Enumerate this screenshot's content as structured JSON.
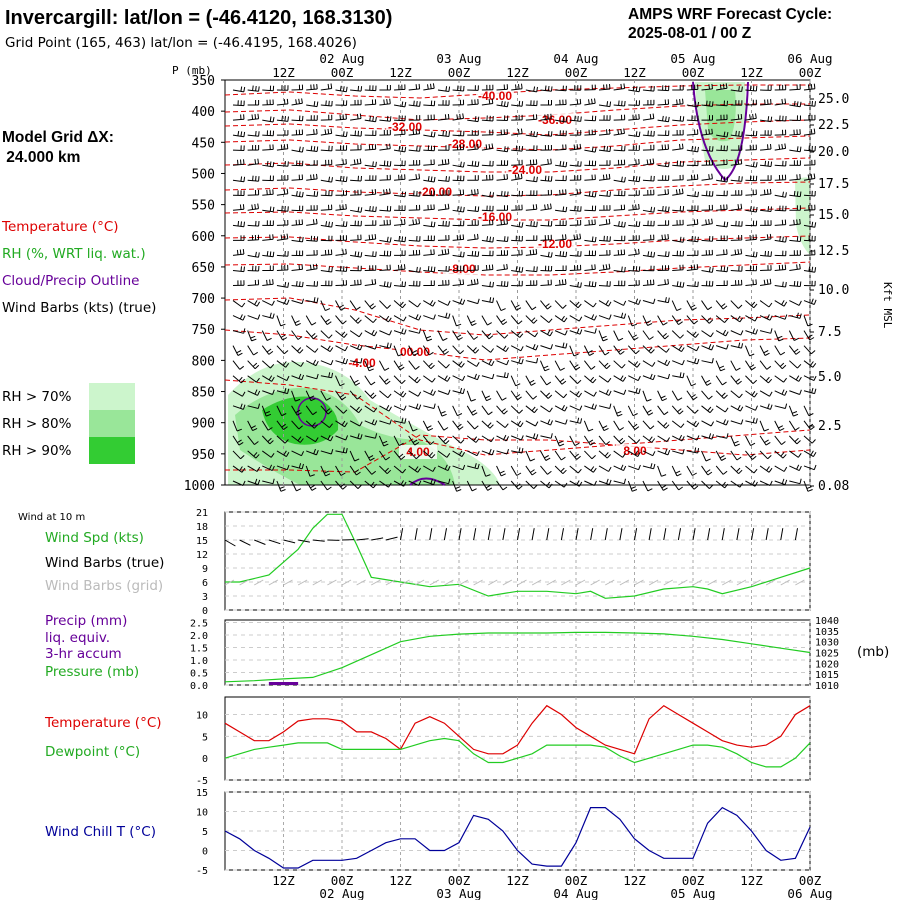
{
  "header": {
    "title": "Invercargill:  lat/lon = (-46.4120, 168.3130)",
    "subtitle": "Grid Point (165, 463) lat/lon = (-46.4195, 168.4026)",
    "cycle_line1": "AMPS WRF Forecast Cycle:",
    "cycle_line2": "2025-08-01 / 00  Z"
  },
  "left_labels": {
    "grid_line1": "Model Grid ΔX:",
    "grid_line2": " 24.000 km",
    "temperature": "Temperature (°C)",
    "rh": "RH (%, WRT liq. wat.)",
    "cloud": "Cloud/Precip Outline",
    "wind": "Wind Barbs (kts) (true)",
    "rh70": "RH > 70%",
    "rh80": "RH > 80%",
    "rh90": "RH > 90%",
    "wind10m": "Wind at 10 m",
    "wspd": "Wind Spd (kts)",
    "wbarb_true": "Wind Barbs (true)",
    "wbarb_grid": "Wind Barbs (grid)",
    "precip1": "Precip (mm)",
    "precip2": "liq. equiv.",
    "precip3": "3-hr accum",
    "pressure": "Pressure (mb)",
    "pres_unit": "(mb)",
    "temp2": "Temperature (°C)",
    "dewpoint": "Dewpoint (°C)",
    "windchill": "Wind Chill T (°C)",
    "p_axis": "P (mb)",
    "kft_axis": "Kft MSL"
  },
  "colors": {
    "temperature": "#dd0000",
    "rh": "#22cc22",
    "rh70": "#ccf5cc",
    "rh80": "#99e699",
    "rh90": "#33cc33",
    "cloud": "#660099",
    "windchill": "#000099",
    "grid_barbs": "#bbbbbb"
  },
  "time_axis": {
    "top_hours": [
      "12Z",
      "00Z",
      "12Z",
      "00Z",
      "12Z",
      "00Z",
      "12Z",
      "00Z",
      "12Z",
      "00Z"
    ],
    "top_dates": [
      "02 Aug",
      "03 Aug",
      "04 Aug",
      "05 Aug",
      "06 Aug"
    ],
    "bottom_hours": [
      "12Z",
      "00Z",
      "12Z",
      "00Z",
      "12Z",
      "00Z",
      "12Z",
      "00Z",
      "12Z",
      "00Z"
    ],
    "bottom_dates": [
      "02 Aug",
      "03 Aug",
      "04 Aug",
      "05 Aug",
      "06 Aug"
    ]
  },
  "chart_data": [
    {
      "type": "heatmap",
      "pressure_ticks": [
        "350",
        "400",
        "450",
        "500",
        "550",
        "600",
        "650",
        "700",
        "750",
        "800",
        "850",
        "900",
        "950",
        "1000"
      ],
      "height_ticks": [
        "25.0",
        "22.5",
        "20.0",
        "17.5",
        "15.0",
        "12.5",
        "10.0",
        "7.5",
        "5.0",
        "2.5",
        "0.08"
      ],
      "temperature_labels": [
        "-40.00",
        "-36.00",
        "-32.00",
        "-28.00",
        "-24.00",
        "-20.00",
        "-16.00",
        "-12.00",
        "-8.00",
        "-4.00",
        "00.00",
        "4.00",
        "8.00"
      ]
    },
    {
      "type": "line",
      "y_ticks": [
        "0",
        "3",
        "6",
        "9",
        "12",
        "15",
        "18",
        "21"
      ],
      "x_hours": [
        0,
        6,
        12,
        18,
        24,
        30,
        36,
        42,
        48,
        54,
        60,
        66,
        72,
        78,
        84,
        90,
        96,
        102,
        108,
        114,
        120
      ],
      "wind_speed_kts": [
        6,
        6.5,
        10,
        14,
        19,
        21,
        15,
        7,
        5.5,
        4,
        5,
        3,
        4,
        4,
        3,
        4,
        2,
        3,
        5,
        5,
        4
      ],
      "wind_speed_x": [
        0,
        3,
        9,
        15,
        18,
        21,
        24,
        27,
        30,
        36,
        42,
        48,
        54,
        60,
        66,
        72,
        75,
        78,
        84,
        90,
        96,
        99,
        102,
        108,
        114,
        120
      ],
      "wind_speed_y": [
        6,
        6,
        7.5,
        13,
        17.5,
        20.5,
        20.5,
        14,
        7,
        6,
        5,
        5.5,
        3,
        4,
        4,
        3.5,
        4,
        2.5,
        3,
        4.5,
        5,
        4.5,
        3.5,
        5,
        7,
        9
      ]
    },
    {
      "type": "line",
      "precip_ticks": [
        "0.0",
        "0.5",
        "1.0",
        "1.5",
        "2.0",
        "2.5"
      ],
      "pressure_ticks": [
        "1010",
        "1015",
        "1020",
        "1025",
        "1030",
        "1035",
        "1040"
      ],
      "pressure_x": [
        0,
        6,
        12,
        18,
        24,
        30,
        36,
        42,
        48,
        54,
        60,
        66,
        72,
        78,
        84,
        90,
        96,
        102,
        108,
        114,
        120
      ],
      "pressure_mb": [
        1011.5,
        1012,
        1012.8,
        1013.5,
        1018,
        1024,
        1030,
        1032.5,
        1033.5,
        1034,
        1034,
        1034,
        1034.3,
        1034.3,
        1034,
        1033.6,
        1032.5,
        1031,
        1029,
        1027,
        1025
      ],
      "precip_mm": [
        0,
        0,
        0,
        0.05,
        0.05,
        0,
        0,
        0,
        0,
        0,
        0,
        0,
        0,
        0,
        0,
        0,
        0,
        0,
        0,
        0,
        0
      ]
    },
    {
      "type": "line",
      "y_ticks": [
        "-5",
        "0",
        "5",
        "10"
      ],
      "x_hours": [
        0,
        3,
        6,
        9,
        12,
        15,
        18,
        21,
        24,
        27,
        30,
        33,
        36,
        39,
        42,
        45,
        48,
        51,
        54,
        57,
        60,
        63,
        66,
        69,
        72,
        75,
        78,
        81,
        84,
        87,
        90,
        93,
        96,
        99,
        102,
        105,
        108,
        111,
        114,
        117,
        120
      ],
      "temperature_c": [
        8,
        6,
        4,
        4,
        6,
        8.5,
        9,
        9,
        8.5,
        6,
        6,
        4.5,
        2,
        8,
        9.5,
        8,
        5,
        2,
        1,
        1,
        3,
        8,
        12,
        10,
        7,
        5,
        3,
        2,
        1,
        9,
        12,
        10,
        8,
        6,
        4,
        3,
        2.5,
        3,
        5,
        10,
        12
      ],
      "dewpoint_c": [
        0,
        1,
        2,
        2.5,
        3,
        3.5,
        3.5,
        3.5,
        2,
        2,
        2,
        2,
        2,
        3,
        4,
        4.5,
        4,
        1,
        -1,
        -1,
        0,
        1,
        3,
        3,
        3,
        3,
        2.5,
        0.5,
        -1,
        0,
        1,
        2,
        3,
        3,
        2.5,
        1,
        -1,
        -2,
        -2,
        0,
        3.5
      ]
    },
    {
      "type": "line",
      "y_ticks": [
        "-5",
        "0",
        "5",
        "10",
        "15"
      ],
      "x_hours": [
        0,
        3,
        6,
        9,
        12,
        15,
        18,
        21,
        24,
        27,
        30,
        33,
        36,
        39,
        42,
        45,
        48,
        51,
        54,
        57,
        60,
        63,
        66,
        69,
        72,
        75,
        78,
        81,
        84,
        87,
        90,
        93,
        96,
        99,
        102,
        105,
        108,
        111,
        114,
        117,
        120
      ],
      "windchill_c": [
        5,
        3,
        0,
        -2,
        -4.5,
        -4.5,
        -2.5,
        -2.5,
        -2.5,
        -2,
        0,
        2,
        3,
        3,
        0,
        0,
        2,
        9,
        8,
        5,
        0,
        -3.5,
        -4,
        -4,
        2,
        11,
        11,
        8,
        3,
        0,
        -2,
        -2,
        -2,
        7,
        11,
        9,
        5,
        0,
        -2.5,
        -2,
        6
      ]
    }
  ]
}
